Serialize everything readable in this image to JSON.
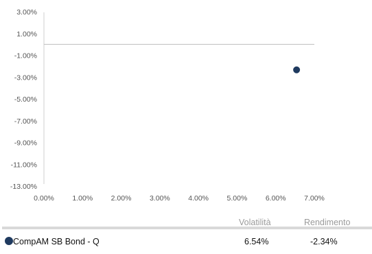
{
  "chart_data": {
    "type": "scatter",
    "title": "",
    "xlabel": "",
    "ylabel": "",
    "xlim": [
      0,
      7
    ],
    "ylim": [
      -13,
      3
    ],
    "x_ticks": [
      "0.00%",
      "1.00%",
      "2.00%",
      "3.00%",
      "4.00%",
      "5.00%",
      "6.00%",
      "7.00%"
    ],
    "y_ticks": [
      "3.00%",
      "1.00%",
      "-1.00%",
      "-3.00%",
      "-5.00%",
      "-7.00%",
      "-9.00%",
      "-11.00%",
      "-13.00%"
    ],
    "grid": false,
    "series": [
      {
        "name": "CompAM SB Bond - Q",
        "x": 6.54,
        "y": -2.34,
        "color": "#1f3a5f"
      }
    ]
  },
  "table": {
    "headers": {
      "volatility": "Volatilità",
      "return": "Rendimento"
    },
    "rows": [
      {
        "name": "CompAM SB Bond - Q",
        "volatility": "6.54%",
        "return": "-2.34%",
        "color": "#1f3a5f"
      }
    ]
  }
}
